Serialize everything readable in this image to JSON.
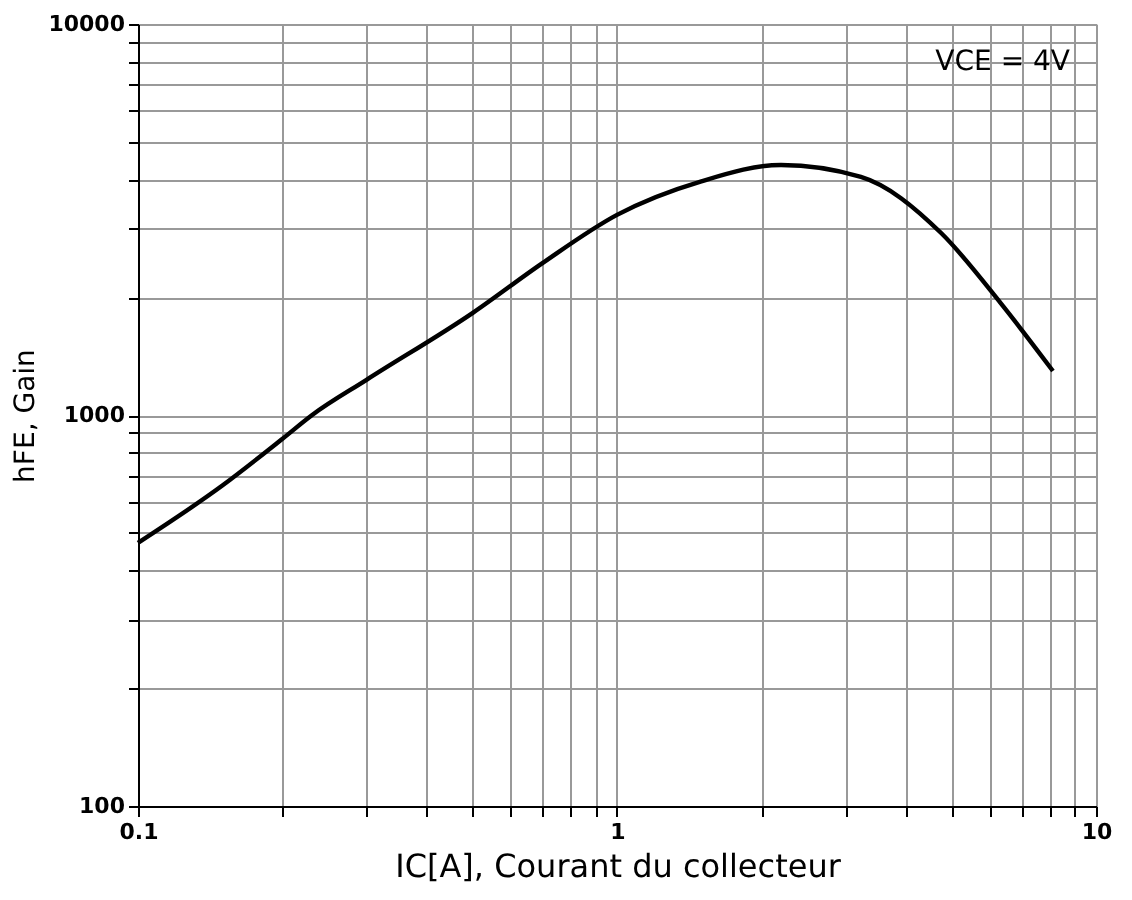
{
  "chart_data": {
    "type": "line",
    "xlabel": "IC[A], Courant du collecteur",
    "ylabel": "hFE, Gain",
    "annotations": [
      "VCE = 4V"
    ],
    "x": [
      0.1,
      0.15,
      0.2,
      0.231,
      0.3,
      0.5,
      0.7,
      1,
      1.5,
      2.2,
      3.23,
      4.75,
      6.33,
      8.13
    ],
    "series": [
      {
        "color": "#000000",
        "values": [
          471,
          660,
          868,
          1000,
          1230,
          1825,
          2450,
          3250,
          3960,
          4360,
          4065,
          2920,
          1930,
          1296
        ]
      }
    ],
    "log": "xy",
    "xlim": [
      0.1,
      10
    ],
    "ylim": [
      100,
      10000
    ],
    "xticks": [
      0.1,
      {
        "value": 0.2,
        "label": null
      },
      {
        "value": 0.3,
        "label": null
      },
      {
        "value": 0.4,
        "label": null
      },
      {
        "value": 0.5,
        "label": null
      },
      {
        "value": 0.6,
        "label": null
      },
      {
        "value": 0.7,
        "label": null
      },
      {
        "value": 0.8,
        "label": null
      },
      {
        "value": 0.9,
        "label": null
      },
      1,
      {
        "value": 2,
        "label": null
      },
      {
        "value": 3,
        "label": null
      },
      {
        "value": 4,
        "label": null
      },
      {
        "value": 5,
        "label": null
      },
      {
        "value": 6,
        "label": null
      },
      {
        "value": 7,
        "label": null
      },
      {
        "value": 8,
        "label": null
      },
      {
        "value": 9,
        "label": null
      },
      10
    ],
    "yticks": [
      100,
      {
        "value": 200,
        "label": null
      },
      {
        "value": 300,
        "label": null
      },
      {
        "value": 400,
        "label": null
      },
      {
        "value": 500,
        "label": null
      },
      {
        "value": 600,
        "label": null
      },
      {
        "value": 700,
        "label": null
      },
      {
        "value": 800,
        "label": null
      },
      {
        "value": 900,
        "label": null
      },
      1000,
      {
        "value": 2000,
        "label": null
      },
      {
        "value": 3000,
        "label": null
      },
      {
        "value": 4000,
        "label": null
      },
      {
        "value": 5000,
        "label": null
      },
      {
        "value": 6000,
        "label": null
      },
      {
        "value": 7000,
        "label": null
      },
      {
        "value": 8000,
        "label": null
      },
      {
        "value": 9000,
        "label": null
      },
      10000
    ],
    "grid": true,
    "marker": "none",
    "line_style": "solid"
  }
}
